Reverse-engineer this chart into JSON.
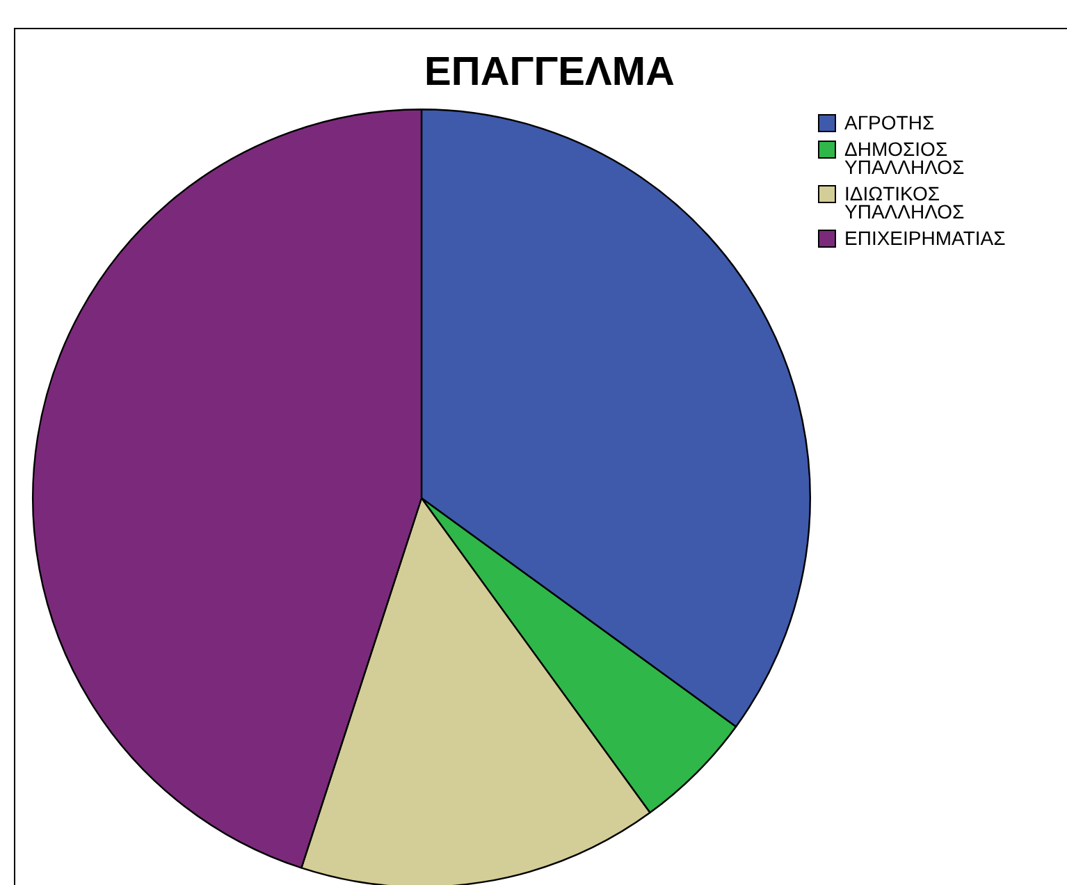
{
  "chart_data": {
    "type": "pie",
    "title": "ΕΠΑΓΓΕΛΜΑ",
    "categories": [
      "ΑΓΡΟΤΗΣ",
      "ΔΗΜΟΣΙΟΣ ΥΠΑΛΛΗΛΟΣ",
      "ΙΔΙΩΤΙΚΟΣ ΥΠΑΛΛΗΛΟΣ",
      "ΕΠΙΧΕΙΡΗΜΑΤΙΑΣ"
    ],
    "values": [
      35,
      5,
      15,
      45
    ],
    "colors": [
      "#3f5aab",
      "#2fb74a",
      "#d3cd97",
      "#7b2a7b"
    ],
    "legend": "top right"
  }
}
